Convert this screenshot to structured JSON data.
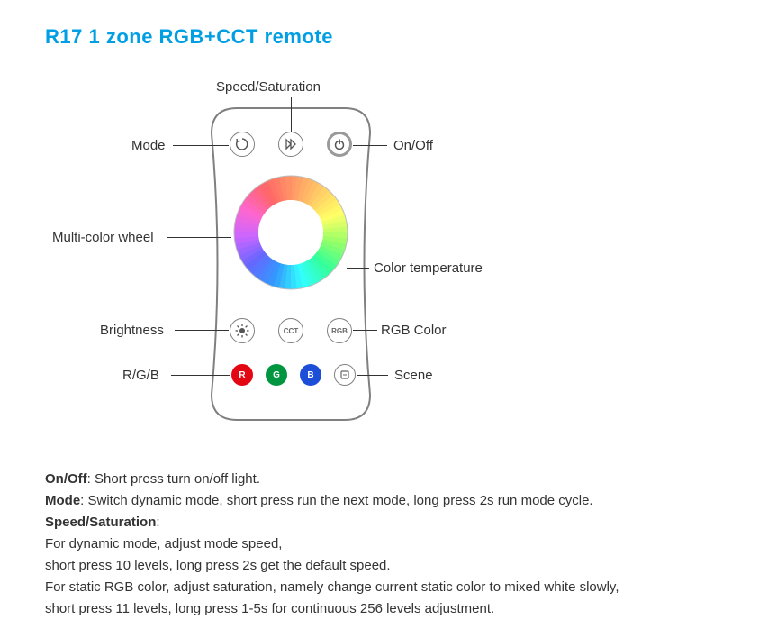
{
  "title": "R17  1 zone RGB+CCT remote",
  "title_color": "#009fe3",
  "remote": {
    "outline_color": "#808080",
    "body_bg": "#ffffff",
    "top_row": {
      "mode_btn": {
        "name": "mode-button",
        "icon": "cycle"
      },
      "speed_btn": {
        "name": "speed-button",
        "icon": "play-fwd"
      },
      "power_btn": {
        "name": "power-button",
        "icon": "power"
      }
    },
    "color_wheel": {
      "outer_stops": [
        "#ff9966",
        "#ffcc66",
        "#ffff66",
        "#99ff66",
        "#33ff99",
        "#33ffff",
        "#3399ff",
        "#6666ff",
        "#cc66ff",
        "#ff66cc",
        "#ff6666",
        "#ff9966"
      ],
      "inner_bg": "#ffffff"
    },
    "mid_row": {
      "brightness_btn": {
        "name": "brightness-button",
        "icon": "sun"
      },
      "cct_btn": {
        "name": "cct-button",
        "label": "CCT"
      },
      "rgb_btn": {
        "name": "rgb-button",
        "label": "RGB"
      }
    },
    "bottom_row": {
      "r_btn": {
        "name": "r-button",
        "label": "R",
        "bg": "#e30613"
      },
      "g_btn": {
        "name": "g-button",
        "label": "G",
        "bg": "#009640"
      },
      "b_btn": {
        "name": "b-button",
        "label": "B",
        "bg": "#1d4ed8"
      },
      "scene_btn": {
        "name": "scene-button",
        "icon": "scene"
      }
    }
  },
  "callouts": {
    "speed": "Speed/Saturation",
    "mode": "Mode",
    "onoff": "On/Off",
    "wheel": "Multi-color wheel",
    "colortemp": "Color temperature",
    "brightness": "Brightness",
    "rgbcolor": "RGB Color",
    "rgb": "R/G/B",
    "scene": "Scene"
  },
  "descriptions": {
    "onoff_label": "On/Off",
    "onoff_text": ": Short press turn on/off light.",
    "mode_label": "Mode",
    "mode_text": ": Switch dynamic mode, short press run the next mode, long press 2s run mode cycle.",
    "speed_label": "Speed/Saturation",
    "speed_colon": ":",
    "speed_line1": "For dynamic mode, adjust mode speed,",
    "speed_line2": "short press 10 levels, long press 2s get the default speed.",
    "speed_line3": "For static RGB color, adjust saturation, namely change current static color to mixed white slowly,",
    "speed_line4": "short press 11 levels, long press 1-5s for continuous 256 levels adjustment."
  },
  "colors": {
    "text": "#333333",
    "line": "#333333"
  }
}
